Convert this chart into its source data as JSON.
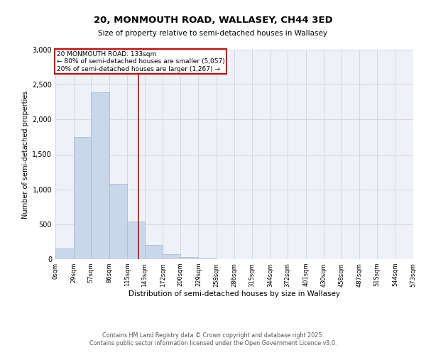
{
  "title_line1": "20, MONMOUTH ROAD, WALLASEY, CH44 3ED",
  "title_line2": "Size of property relative to semi-detached houses in Wallasey",
  "xlabel": "Distribution of semi-detached houses by size in Wallasey",
  "ylabel": "Number of semi-detached properties",
  "property_size": 133,
  "pct_smaller": 80,
  "count_smaller": 5057,
  "pct_larger": 20,
  "count_larger": 1267,
  "annotation_label": "20 MONMOUTH ROAD: 133sqm",
  "bin_edges": [
    0,
    29,
    57,
    86,
    115,
    143,
    172,
    200,
    229,
    258,
    286,
    315,
    344,
    372,
    401,
    430,
    458,
    487,
    515,
    544,
    573
  ],
  "bar_heights": [
    150,
    1750,
    2390,
    1075,
    540,
    200,
    75,
    30,
    10,
    5,
    3,
    2,
    1,
    0,
    0,
    0,
    0,
    0,
    0,
    0
  ],
  "bar_color": "#c8d8ea",
  "bar_edge_color": "#aabcce",
  "vline_color": "#cc0000",
  "vline_x": 133,
  "box_color": "#cc0000",
  "ylim": [
    0,
    3000
  ],
  "yticks": [
    0,
    500,
    1000,
    1500,
    2000,
    2500,
    3000
  ],
  "grid_color": "#d0d8e4",
  "bg_color": "#eef2f7",
  "footer_line1": "Contains HM Land Registry data © Crown copyright and database right 2025.",
  "footer_line2": "Contains public sector information licensed under the Open Government Licence v3.0."
}
